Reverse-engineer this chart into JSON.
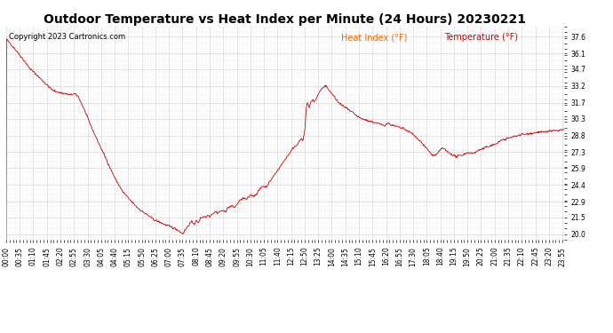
{
  "title": "Outdoor Temperature vs Heat Index per Minute (24 Hours) 20230221",
  "copyright_text": "Copyright 2023 Cartronics.com",
  "legend_heat_index": "Heat Index (°F)",
  "legend_temperature": "Temperature (°F)",
  "background_color": "#ffffff",
  "plot_bg_color": "#ffffff",
  "grid_color": "#c0c0c0",
  "line_color": "#cc0000",
  "legend_heat_color": "#ff6600",
  "legend_temp_color": "#cc0000",
  "title_fontsize": 10,
  "copyright_fontsize": 6,
  "legend_fontsize": 7,
  "tick_fontsize": 5.5,
  "ytick_labels": [
    37.6,
    36.1,
    34.7,
    33.2,
    31.7,
    30.3,
    28.8,
    27.3,
    25.9,
    24.4,
    22.9,
    21.5,
    20.0
  ],
  "ymin": 19.5,
  "ymax": 38.5,
  "total_minutes": 1440
}
